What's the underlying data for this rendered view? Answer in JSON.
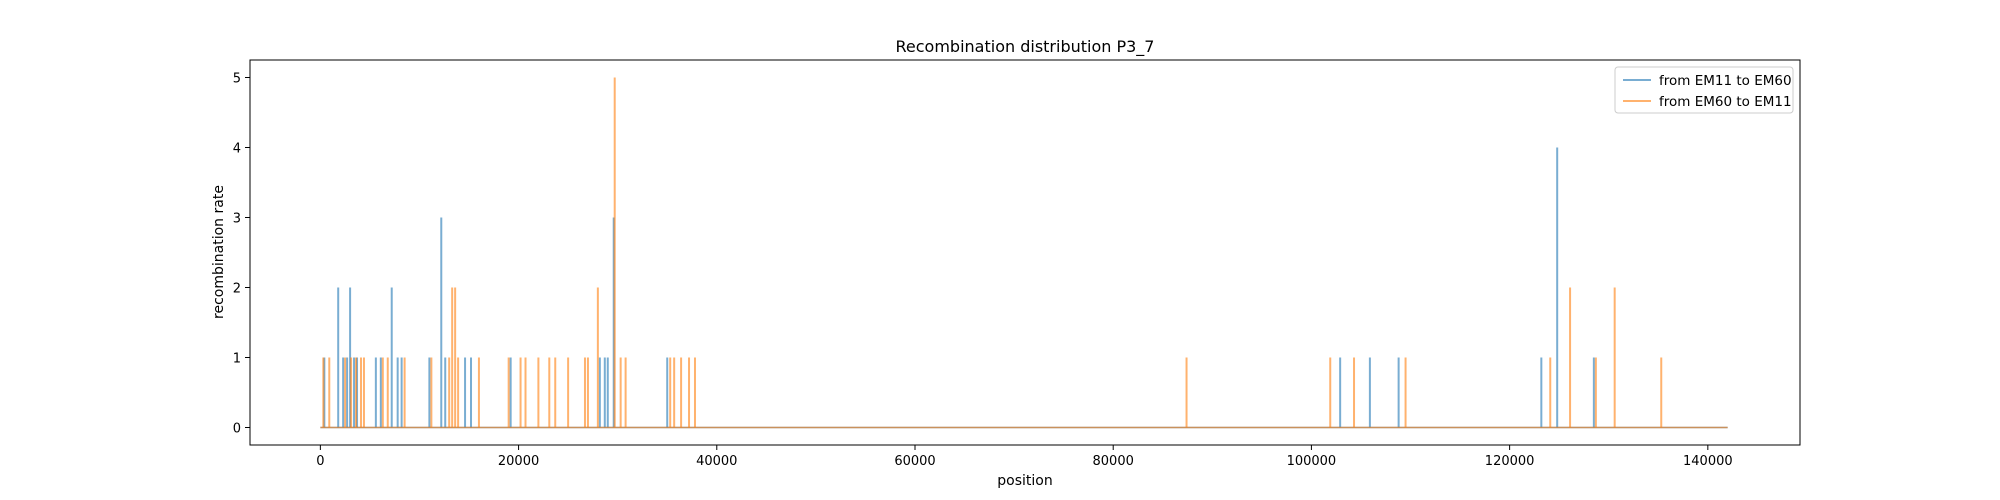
{
  "chart_data": {
    "type": "line",
    "title": "Recombination distribution P3_7",
    "xlabel": "position",
    "ylabel": "recombination rate",
    "xlim": [
      -7100,
      149300
    ],
    "ylim": [
      -0.25,
      5.25
    ],
    "xticks": [
      0,
      20000,
      40000,
      60000,
      80000,
      100000,
      120000,
      140000
    ],
    "xtick_labels": [
      "0",
      "20000",
      "40000",
      "60000",
      "80000",
      "100000",
      "120000",
      "140000"
    ],
    "yticks": [
      0,
      1,
      2,
      3,
      4,
      5
    ],
    "ytick_labels": [
      "0",
      "1",
      "2",
      "3",
      "4",
      "5"
    ],
    "x_range": [
      0,
      142000
    ],
    "grid": false,
    "legend_position": "top-right",
    "series": [
      {
        "name": "from EM11 to EM60",
        "color": "#1f77b4",
        "spikes": [
          {
            "x": 400,
            "y": 1
          },
          {
            "x": 1800,
            "y": 2
          },
          {
            "x": 2300,
            "y": 1
          },
          {
            "x": 2700,
            "y": 1
          },
          {
            "x": 3000,
            "y": 2
          },
          {
            "x": 3400,
            "y": 1
          },
          {
            "x": 3700,
            "y": 1
          },
          {
            "x": 5600,
            "y": 1
          },
          {
            "x": 6100,
            "y": 1
          },
          {
            "x": 7200,
            "y": 2
          },
          {
            "x": 7800,
            "y": 1
          },
          {
            "x": 8200,
            "y": 1
          },
          {
            "x": 11000,
            "y": 1
          },
          {
            "x": 12200,
            "y": 3
          },
          {
            "x": 12600,
            "y": 1
          },
          {
            "x": 14600,
            "y": 1
          },
          {
            "x": 15200,
            "y": 1
          },
          {
            "x": 19200,
            "y": 1
          },
          {
            "x": 28200,
            "y": 1
          },
          {
            "x": 28700,
            "y": 1
          },
          {
            "x": 29000,
            "y": 1
          },
          {
            "x": 29600,
            "y": 3
          },
          {
            "x": 35000,
            "y": 1
          },
          {
            "x": 102900,
            "y": 1
          },
          {
            "x": 105900,
            "y": 1
          },
          {
            "x": 108800,
            "y": 1
          },
          {
            "x": 123200,
            "y": 1
          },
          {
            "x": 124800,
            "y": 4
          },
          {
            "x": 128500,
            "y": 1
          }
        ]
      },
      {
        "name": "from EM60 to EM11",
        "color": "#ff7f0e",
        "spikes": [
          {
            "x": 300,
            "y": 1
          },
          {
            "x": 900,
            "y": 1
          },
          {
            "x": 2500,
            "y": 1
          },
          {
            "x": 3100,
            "y": 1
          },
          {
            "x": 3600,
            "y": 1
          },
          {
            "x": 4100,
            "y": 1
          },
          {
            "x": 4400,
            "y": 1
          },
          {
            "x": 6300,
            "y": 1
          },
          {
            "x": 6800,
            "y": 1
          },
          {
            "x": 8500,
            "y": 1
          },
          {
            "x": 11200,
            "y": 1
          },
          {
            "x": 13000,
            "y": 1
          },
          {
            "x": 13300,
            "y": 2
          },
          {
            "x": 13600,
            "y": 2
          },
          {
            "x": 13900,
            "y": 1
          },
          {
            "x": 16000,
            "y": 1
          },
          {
            "x": 19000,
            "y": 1
          },
          {
            "x": 20200,
            "y": 1
          },
          {
            "x": 20700,
            "y": 1
          },
          {
            "x": 22000,
            "y": 1
          },
          {
            "x": 23100,
            "y": 1
          },
          {
            "x": 23700,
            "y": 1
          },
          {
            "x": 25000,
            "y": 1
          },
          {
            "x": 26700,
            "y": 1
          },
          {
            "x": 27000,
            "y": 1
          },
          {
            "x": 28000,
            "y": 2
          },
          {
            "x": 29700,
            "y": 5
          },
          {
            "x": 30300,
            "y": 1
          },
          {
            "x": 30800,
            "y": 1
          },
          {
            "x": 35300,
            "y": 1
          },
          {
            "x": 35700,
            "y": 1
          },
          {
            "x": 36400,
            "y": 1
          },
          {
            "x": 37200,
            "y": 1
          },
          {
            "x": 37800,
            "y": 1
          },
          {
            "x": 87400,
            "y": 1
          },
          {
            "x": 101900,
            "y": 1
          },
          {
            "x": 104300,
            "y": 1
          },
          {
            "x": 109500,
            "y": 1
          },
          {
            "x": 124100,
            "y": 1
          },
          {
            "x": 126100,
            "y": 2
          },
          {
            "x": 128700,
            "y": 1
          },
          {
            "x": 130600,
            "y": 2
          },
          {
            "x": 135300,
            "y": 1
          }
        ]
      }
    ]
  }
}
